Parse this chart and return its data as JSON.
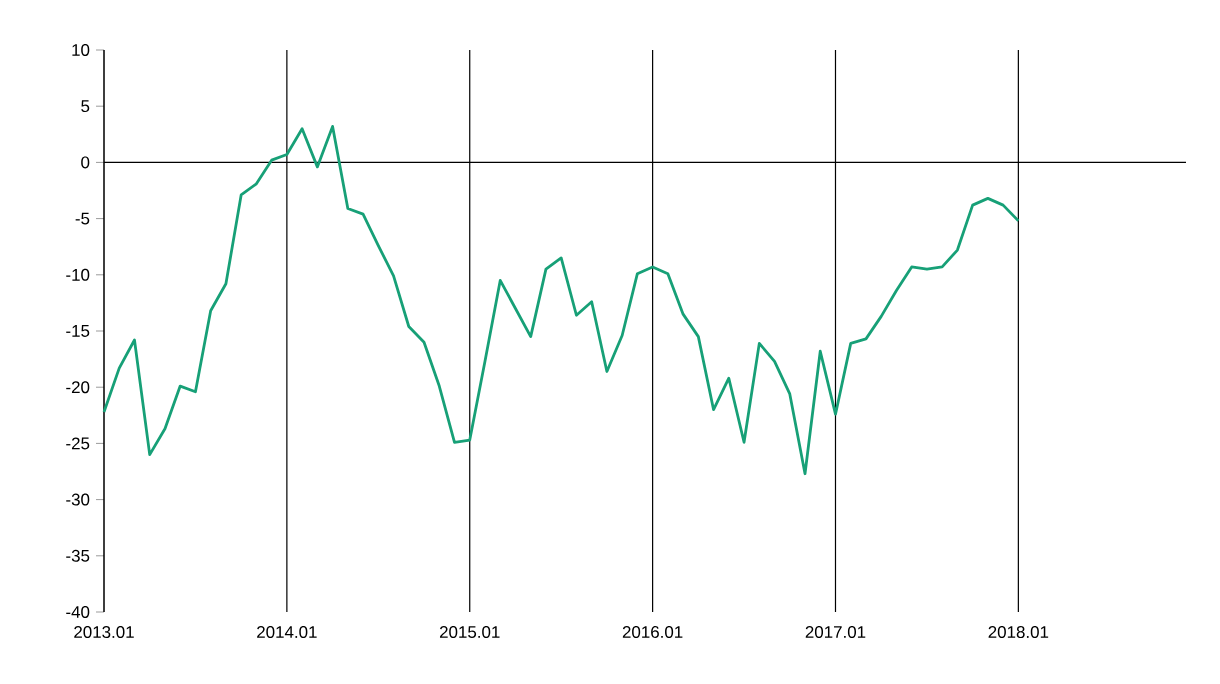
{
  "chart_data": {
    "type": "line",
    "categories": [
      "2013.01",
      null,
      null,
      null,
      null,
      null,
      null,
      null,
      null,
      null,
      null,
      null,
      "2014.01",
      null,
      null,
      null,
      null,
      null,
      null,
      null,
      null,
      null,
      null,
      null,
      "2015.01",
      null,
      null,
      null,
      null,
      null,
      null,
      null,
      null,
      null,
      null,
      null,
      "2016.01",
      null,
      null,
      null,
      null,
      null,
      null,
      null,
      null,
      null,
      null,
      null,
      "2017.01",
      null,
      null,
      null,
      null,
      null,
      null,
      null,
      null,
      null,
      null,
      null,
      "2018.01",
      null,
      null,
      null,
      null,
      null,
      null,
      null,
      null,
      null,
      null,
      null
    ],
    "series": [
      {
        "color": "#17a077",
        "values": [
          -22.2,
          -18.3,
          -15.8,
          -26.0,
          -23.7,
          -19.9,
          -20.4,
          -13.2,
          -10.8,
          -2.9,
          -1.9,
          0.2,
          0.7,
          3.0,
          -0.4,
          3.2,
          -4.1,
          -4.6,
          -7.4,
          -10.1,
          -14.6,
          -16.0,
          -19.9,
          -24.9,
          -24.7,
          -17.7,
          -10.5,
          -13.0,
          -15.5,
          -9.5,
          -8.5,
          -13.6,
          -12.4,
          -18.6,
          -15.4,
          -9.9,
          -9.3,
          -9.9,
          -13.5,
          -15.5,
          -22.0,
          -19.2,
          -24.9,
          -16.1,
          -17.7,
          -20.6,
          -27.7,
          -16.8,
          -22.4,
          -16.1,
          -15.7,
          -13.7,
          -11.4,
          -9.3,
          -9.5,
          -9.3,
          -7.8,
          -3.8,
          -3.2,
          -3.8,
          -5.2,
          null,
          null,
          null,
          null,
          null,
          null,
          null,
          null,
          null,
          null,
          null
        ]
      }
    ],
    "ylim": [
      -40,
      10
    ],
    "yticks": [
      -40,
      -35,
      -30,
      -25,
      -20,
      -15,
      -10,
      -5,
      0,
      5,
      10
    ],
    "ref_lines": [
      {
        "axis": "y",
        "value": 0,
        "color": "#000000"
      }
    ],
    "grid": "x",
    "marker": "none",
    "line_style": "solid"
  }
}
